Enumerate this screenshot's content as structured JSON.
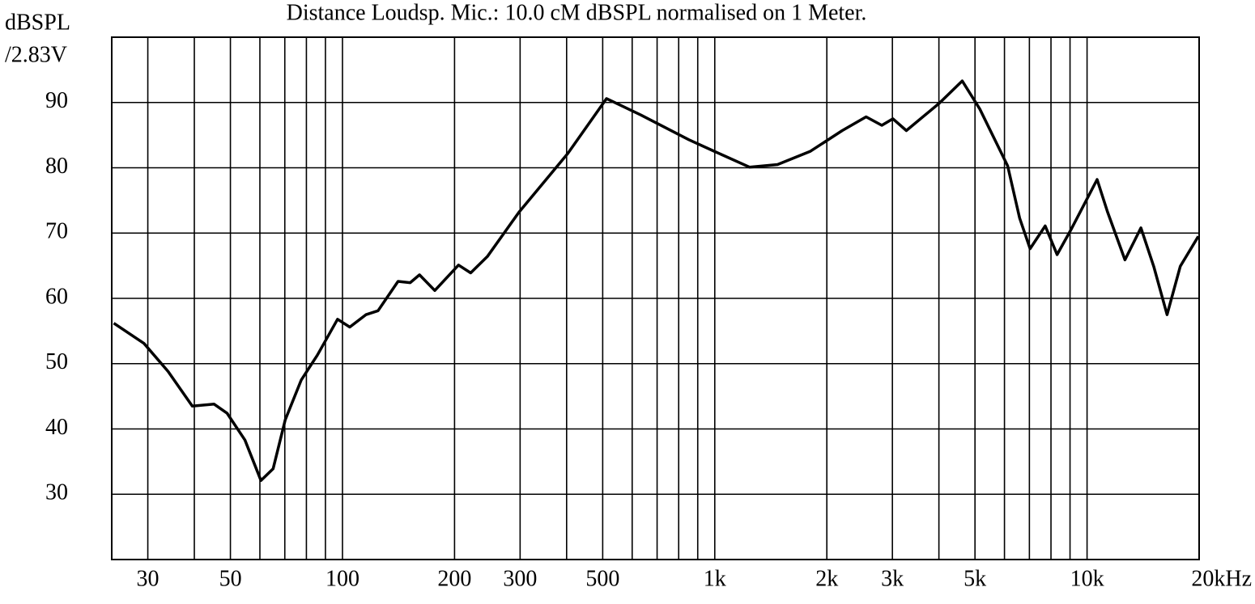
{
  "chart_data": {
    "type": "line",
    "title": "Distance Loudsp. Mic.: 10.0 cM dBSPL normalised on 1 Meter.",
    "ylabel": [
      "dBSPL",
      "/2.83V"
    ],
    "xscale": "log",
    "xlim": [
      24,
      20000
    ],
    "ylim": [
      20,
      100
    ],
    "xticks": [
      30,
      50,
      100,
      200,
      300,
      500,
      {
        "value": 1000,
        "label": "1k"
      },
      {
        "value": 2000,
        "label": "2k"
      },
      {
        "value": 3000,
        "label": "3k"
      },
      {
        "value": 5000,
        "label": "5k"
      },
      {
        "value": 10000,
        "label": "10k"
      },
      {
        "value": 20000,
        "label": "20kHz"
      }
    ],
    "minor_xticks": [
      40,
      60,
      70,
      80,
      90,
      400,
      600,
      700,
      800,
      900,
      4000,
      6000,
      7000,
      8000,
      9000
    ],
    "yticks": [
      30,
      40,
      50,
      60,
      70,
      80,
      90
    ],
    "grid": true,
    "series": [
      {
        "color": "#000000",
        "x": [
          24.3,
          29.3,
          34,
          39.5,
          45.2,
          49,
          54.7,
          60.4,
          65.1,
          70.2,
          77.5,
          85.6,
          97,
          104.6,
          115.6,
          124.6,
          141,
          152,
          161,
          177,
          205,
          221,
          245,
          298,
          403,
          512,
          632,
          852,
          990,
          1240,
          1474,
          1803,
          2200,
          2550,
          2810,
          3010,
          3270,
          4010,
          4620,
          5150,
          6120,
          6590,
          7030,
          7720,
          8310,
          9090,
          10640,
          11340,
          12640,
          13950,
          15100,
          16400,
          17800,
          19900
        ],
        "values": [
          56.2,
          53.1,
          48.8,
          43.5,
          43.8,
          42.4,
          38.3,
          32.1,
          33.9,
          41.4,
          47.5,
          51.3,
          56.8,
          55.6,
          57.5,
          58.1,
          62.6,
          62.4,
          63.6,
          61.2,
          65.1,
          63.9,
          66.4,
          73.2,
          82.2,
          90.6,
          88.1,
          84.3,
          82.6,
          80.1,
          80.5,
          82.5,
          85.7,
          87.8,
          86.5,
          87.5,
          85.7,
          89.9,
          93.3,
          89,
          80.3,
          72.3,
          67.6,
          71.1,
          66.7,
          70.7,
          78.2,
          73.3,
          65.9,
          70.8,
          64.9,
          57.5,
          64.9,
          69.5
        ]
      }
    ]
  }
}
